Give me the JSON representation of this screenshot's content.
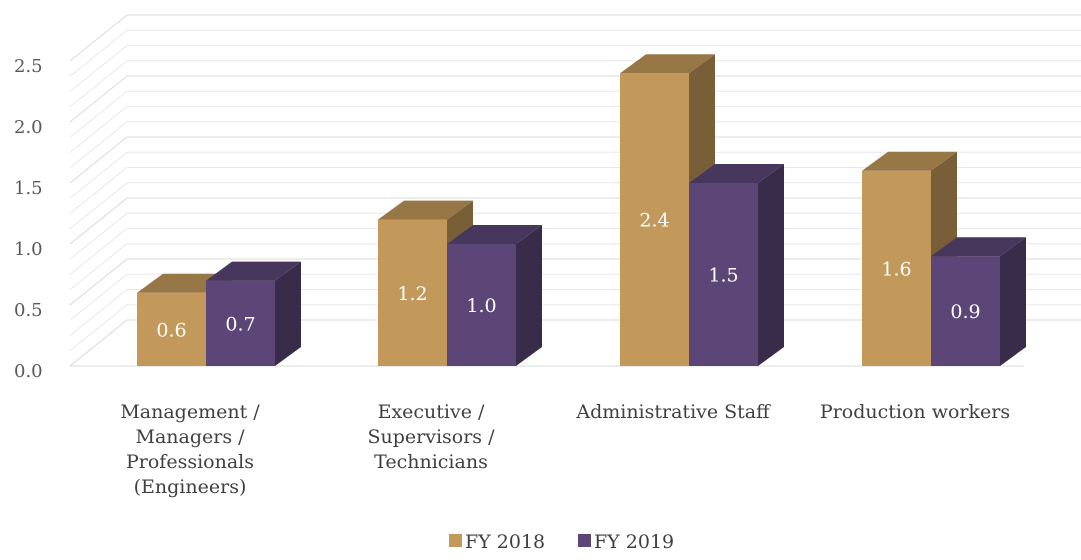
{
  "chart_data": {
    "type": "bar",
    "title": "",
    "xlabel": "",
    "ylabel": "",
    "categories": [
      [
        "Management /",
        "Managers /",
        "Professionals",
        "(Engineers)"
      ],
      [
        "Executive /",
        "Supervisors /",
        "Technicians"
      ],
      [
        "Administrative Staff"
      ],
      [
        "Production workers"
      ]
    ],
    "series": [
      {
        "name": "FY 2018",
        "values": [
          0.6,
          1.2,
          2.4,
          1.6
        ],
        "labels": [
          "0.6",
          "1.2",
          "2.4",
          "1.6"
        ],
        "color": "#c2995a"
      },
      {
        "name": "FY 2019",
        "values": [
          0.7,
          1.0,
          1.5,
          0.9
        ],
        "labels": [
          "0.7",
          "1.0",
          "1.5",
          "0.9"
        ],
        "color": "#5c4677"
      }
    ],
    "yticks": [
      "0.0",
      "0.5",
      "1.0",
      "1.5",
      "2.0",
      "2.5"
    ],
    "ylim": [
      0,
      2.5
    ],
    "grid": true,
    "legend": "bottom",
    "style": "3d-clustered-column"
  }
}
